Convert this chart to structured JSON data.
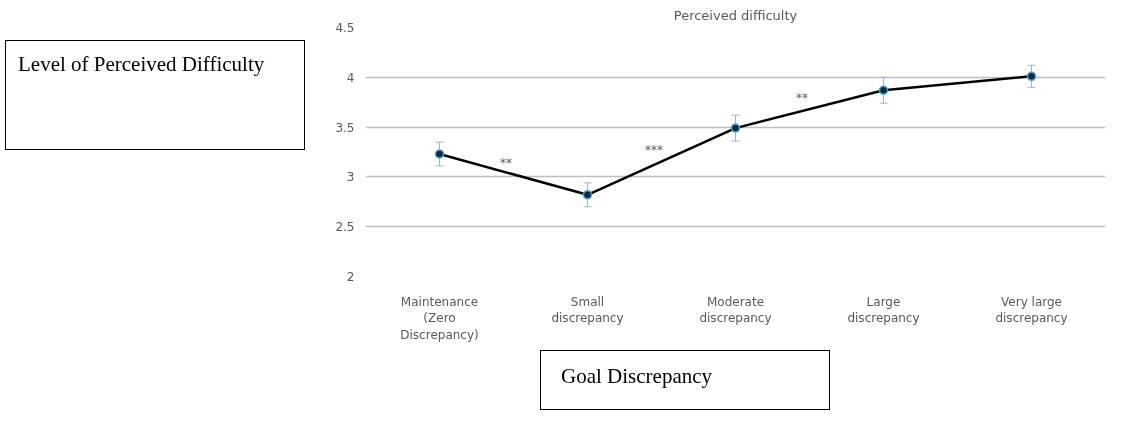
{
  "chart_data": {
    "type": "line",
    "title": "Perceived difficulty",
    "xlabel": "Goal Discrepancy",
    "ylabel": "Level of Perceived Difficulty",
    "categories": [
      "Maintenance\n(Zero\nDiscrepancy)",
      "Small\ndiscrepancy",
      "Moderate\ndiscrepancy",
      "Large\ndiscrepancy",
      "Very large\ndiscrepancy"
    ],
    "series": [
      {
        "color": "#000000",
        "values": [
          3.23,
          2.82,
          3.49,
          3.87,
          4.01
        ],
        "errors": [
          0.12,
          0.12,
          0.13,
          0.13,
          0.11
        ]
      }
    ],
    "annotations": [
      "**",
      "***",
      "**"
    ],
    "ylim": [
      2,
      4.5
    ],
    "yticks": [
      2,
      2.5,
      3,
      3.5,
      4,
      4.5
    ],
    "grid": "y",
    "marker": "circle",
    "line_style": "solid"
  }
}
